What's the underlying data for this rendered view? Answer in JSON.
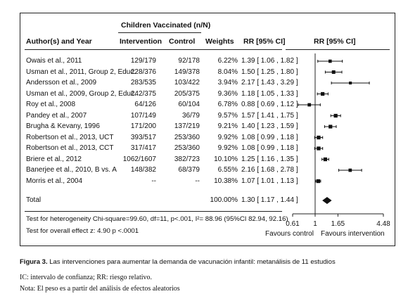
{
  "header": {
    "group_title": "Children Vaccinated (n/N)",
    "author_col": "Author(s) and Year",
    "intervention_col": "Intervention",
    "control_col": "Control",
    "weights_col": "Weights",
    "rr_col": "RR [95% CI]",
    "plot_col": "RR [95% CI]"
  },
  "studies": [
    {
      "author": "Owais et al., 2011",
      "intervention": "129/179",
      "control": "92/178",
      "weight": "6.22%",
      "rr_text": "1.39 [ 1.06 , 1.82 ]",
      "rr": 1.39,
      "lo": 1.06,
      "hi": 1.82
    },
    {
      "author": "Usman et al., 2011, Group 2, Educ.",
      "intervention": "228/376",
      "control": "149/378",
      "weight": "8.04%",
      "rr_text": "1.50 [ 1.25 , 1.80 ]",
      "rr": 1.5,
      "lo": 1.25,
      "hi": 1.8
    },
    {
      "author": "Andersson et al., 2009",
      "intervention": "283/535",
      "control": "103/422",
      "weight": "3.94%",
      "rr_text": "2.17 [ 1.43 , 3.29 ]",
      "rr": 2.17,
      "lo": 1.43,
      "hi": 3.29
    },
    {
      "author": "Usman et al., 2009, Group 2, Educ.",
      "intervention": "242/375",
      "control": "205/375",
      "weight": "9.36%",
      "rr_text": "1.18 [ 1.05 , 1.33 ]",
      "rr": 1.18,
      "lo": 1.05,
      "hi": 1.33
    },
    {
      "author": "Roy et al., 2008",
      "intervention": "64/126",
      "control": "60/104",
      "weight": "6.78%",
      "rr_text": "0.88 [ 0.69 , 1.12 ]",
      "rr": 0.88,
      "lo": 0.69,
      "hi": 1.12
    },
    {
      "author": "Pandey et al., 2007",
      "intervention": "107/149",
      "control": "36/79",
      "weight": "9.57%",
      "rr_text": "1.57 [ 1.41 , 1.75 ]",
      "rr": 1.57,
      "lo": 1.41,
      "hi": 1.75
    },
    {
      "author": "Brugha & Kevany, 1996",
      "intervention": "171/200",
      "control": "137/219",
      "weight": "9.21%",
      "rr_text": "1.40 [ 1.23 , 1.59 ]",
      "rr": 1.4,
      "lo": 1.23,
      "hi": 1.59
    },
    {
      "author": "Robertson et al., 2013, UCT",
      "intervention": "393/517",
      "control": "253/360",
      "weight": "9.92%",
      "rr_text": "1.08 [ 0.99 , 1.18 ]",
      "rr": 1.08,
      "lo": 0.99,
      "hi": 1.18
    },
    {
      "author": "Robertson et al., 2013, CCT",
      "intervention": "317/417",
      "control": "253/360",
      "weight": "9.92%",
      "rr_text": "1.08 [ 0.99 , 1.18 ]",
      "rr": 1.08,
      "lo": 0.99,
      "hi": 1.18
    },
    {
      "author": "Briere et al., 2012",
      "intervention": "1062/1607",
      "control": "382/723",
      "weight": "10.10%",
      "rr_text": "1.25 [ 1.16 , 1.35 ]",
      "rr": 1.25,
      "lo": 1.16,
      "hi": 1.35
    },
    {
      "author": "Banerjee et al., 2010, B vs. A",
      "intervention": "148/382",
      "control": "68/379",
      "weight": "6.55%",
      "rr_text": "2.16 [ 1.68 , 2.78 ]",
      "rr": 2.16,
      "lo": 1.68,
      "hi": 2.78
    },
    {
      "author": "Morris et al., 2004",
      "intervention": "--",
      "control": "--",
      "weight": "10.38%",
      "rr_text": "1.07 [ 1.01 , 1.13 ]",
      "rr": 1.07,
      "lo": 1.01,
      "hi": 1.13
    }
  ],
  "total": {
    "label": "Total",
    "weight": "100.00%",
    "rr_text": "1.30 [ 1.17 , 1.44 ]",
    "rr": 1.3,
    "lo": 1.17,
    "hi": 1.44
  },
  "tests": {
    "heterogeneity": "Test for heterogeneity Chi-square=99.60, df=11, p<.001, I²= 88.96 (95%CI 82.94, 92.16)",
    "overall": "Test for overall effect z: 4.90 p <.0001"
  },
  "axis": {
    "ticks": [
      {
        "value": 0.61,
        "label": "0.61"
      },
      {
        "value": 1,
        "label": "1"
      },
      {
        "value": 1.65,
        "label": "1.65"
      },
      {
        "value": 4.48,
        "label": "4.48"
      }
    ],
    "left_label": "Favours control",
    "right_label": "Favours intervention"
  },
  "caption": {
    "figure_label": "Figura 3.",
    "figure_text": " Las intervenciones para aumentar la demanda de vacunación infantil: metanálisis de 11 estudios",
    "line2": "IC: intervalo de confianza; RR: riesgo relativo.",
    "line3": "Nota: El peso es a partir del análisis de efectos aleatorios"
  },
  "chart_data": {
    "type": "scatter",
    "scale": "log",
    "xlim": [
      0.61,
      4.48
    ],
    "reference_line": 1,
    "categories": [
      "Owais et al., 2011",
      "Usman et al., 2011, Group 2, Educ.",
      "Andersson et al., 2009",
      "Usman et al., 2009, Group 2, Educ.",
      "Roy et al., 2008",
      "Pandey et al., 2007",
      "Brugha & Kevany, 1996",
      "Robertson et al., 2013, UCT",
      "Robertson et al., 2013, CCT",
      "Briere et al., 2012",
      "Banerjee et al., 2010, B vs. A",
      "Morris et al., 2004",
      "Total"
    ],
    "values": [
      1.39,
      1.5,
      2.17,
      1.18,
      0.88,
      1.57,
      1.4,
      1.08,
      1.08,
      1.25,
      2.16,
      1.07,
      1.3
    ],
    "ci_low": [
      1.06,
      1.25,
      1.43,
      1.05,
      0.69,
      1.41,
      1.23,
      0.99,
      0.99,
      1.16,
      1.68,
      1.01,
      1.17
    ],
    "ci_high": [
      1.82,
      1.8,
      3.29,
      1.33,
      1.12,
      1.75,
      1.59,
      1.18,
      1.18,
      1.35,
      2.78,
      1.13,
      1.44
    ],
    "weights": [
      6.22,
      8.04,
      3.94,
      9.36,
      6.78,
      9.57,
      9.21,
      9.92,
      9.92,
      10.1,
      6.55,
      10.38,
      100.0
    ],
    "xlabel": "",
    "ylabel": ""
  }
}
